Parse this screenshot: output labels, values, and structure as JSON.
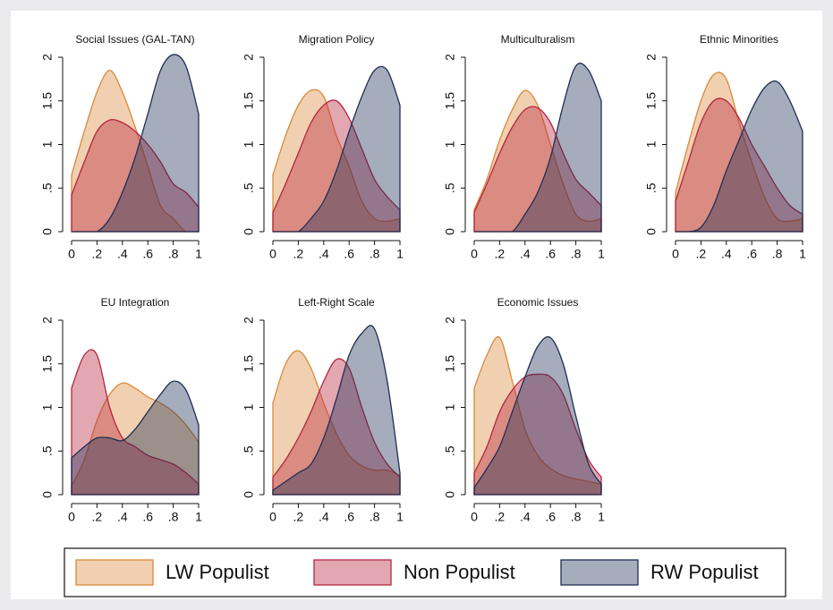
{
  "chart_data": [
    {
      "type": "area",
      "title": "Social Issues (GAL-TAN)",
      "x": [
        0,
        0.1,
        0.2,
        0.3,
        0.4,
        0.5,
        0.6,
        0.7,
        0.8,
        0.9,
        1
      ],
      "series": [
        {
          "values": [
            0.65,
            1.15,
            1.6,
            1.85,
            1.6,
            1.2,
            0.75,
            0.3,
            0.15,
            0,
            0
          ]
        },
        {
          "values": [
            0.42,
            0.8,
            1.15,
            1.28,
            1.25,
            1.15,
            1.0,
            0.8,
            0.55,
            0.45,
            0.28
          ]
        },
        {
          "values": [
            0,
            0,
            0,
            0.15,
            0.45,
            0.85,
            1.35,
            1.85,
            2.03,
            1.9,
            1.35
          ]
        }
      ],
      "xlim": [
        0,
        1
      ],
      "ylim": [
        0,
        2
      ]
    },
    {
      "type": "area",
      "title": "Migration Policy",
      "x": [
        0,
        0.1,
        0.2,
        0.3,
        0.4,
        0.5,
        0.6,
        0.7,
        0.8,
        0.9,
        1
      ],
      "series": [
        {
          "values": [
            0.65,
            1.1,
            1.45,
            1.62,
            1.55,
            1.1,
            0.75,
            0.35,
            0.15,
            0.12,
            0.15
          ]
        },
        {
          "values": [
            0.22,
            0.55,
            0.9,
            1.25,
            1.45,
            1.5,
            1.3,
            0.95,
            0.6,
            0.4,
            0.25
          ]
        },
        {
          "values": [
            0,
            0,
            0,
            0.15,
            0.35,
            0.7,
            1.15,
            1.55,
            1.85,
            1.85,
            1.45
          ]
        }
      ],
      "xlim": [
        0,
        1
      ],
      "ylim": [
        0,
        2
      ]
    },
    {
      "type": "area",
      "title": "Multiculturalism",
      "x": [
        0,
        0.1,
        0.2,
        0.3,
        0.4,
        0.5,
        0.6,
        0.7,
        0.8,
        0.9,
        1
      ],
      "series": [
        {
          "values": [
            0.25,
            0.6,
            1.05,
            1.4,
            1.62,
            1.45,
            1.0,
            0.55,
            0.2,
            0.12,
            0.15
          ]
        },
        {
          "values": [
            0.22,
            0.55,
            0.9,
            1.2,
            1.4,
            1.42,
            1.25,
            0.9,
            0.6,
            0.45,
            0.3
          ]
        },
        {
          "values": [
            0,
            0,
            0,
            0,
            0.2,
            0.45,
            0.85,
            1.45,
            1.9,
            1.85,
            1.5
          ]
        }
      ],
      "xlim": [
        0,
        1
      ],
      "ylim": [
        0,
        2
      ]
    },
    {
      "type": "area",
      "title": "Ethnic Minorities",
      "x": [
        0,
        0.1,
        0.2,
        0.3,
        0.4,
        0.5,
        0.6,
        0.7,
        0.8,
        0.9,
        1
      ],
      "series": [
        {
          "values": [
            0.45,
            1.0,
            1.5,
            1.8,
            1.75,
            1.25,
            0.8,
            0.4,
            0.15,
            0.12,
            0.15
          ]
        },
        {
          "values": [
            0.35,
            0.8,
            1.25,
            1.5,
            1.5,
            1.3,
            1.0,
            0.75,
            0.5,
            0.3,
            0.2
          ]
        },
        {
          "values": [
            0,
            0,
            0.05,
            0.3,
            0.7,
            1.05,
            1.4,
            1.65,
            1.72,
            1.5,
            1.15
          ]
        }
      ],
      "xlim": [
        0,
        1
      ],
      "ylim": [
        0,
        2
      ]
    },
    {
      "type": "area",
      "title": "EU Integration",
      "x": [
        0,
        0.1,
        0.2,
        0.3,
        0.4,
        0.5,
        0.6,
        0.7,
        0.8,
        0.9,
        1
      ],
      "series": [
        {
          "values": [
            0.1,
            0.4,
            0.85,
            1.15,
            1.28,
            1.22,
            1.12,
            1.05,
            0.95,
            0.8,
            0.6
          ]
        },
        {
          "values": [
            1.22,
            1.6,
            1.6,
            1.0,
            0.65,
            0.55,
            0.45,
            0.4,
            0.35,
            0.25,
            0.12
          ]
        },
        {
          "values": [
            0.42,
            0.55,
            0.65,
            0.65,
            0.62,
            0.75,
            0.95,
            1.15,
            1.3,
            1.2,
            0.8
          ]
        }
      ],
      "xlim": [
        0,
        1
      ],
      "ylim": [
        0,
        2
      ]
    },
    {
      "type": "area",
      "title": "Left-Right Scale",
      "x": [
        0,
        0.1,
        0.2,
        0.3,
        0.4,
        0.5,
        0.6,
        0.7,
        0.8,
        0.9,
        1
      ],
      "series": [
        {
          "values": [
            1.05,
            1.5,
            1.65,
            1.45,
            1.05,
            0.7,
            0.45,
            0.33,
            0.28,
            0.28,
            0.22
          ]
        },
        {
          "values": [
            0.2,
            0.4,
            0.65,
            0.95,
            1.3,
            1.55,
            1.45,
            1.0,
            0.6,
            0.35,
            0.2
          ]
        },
        {
          "values": [
            0.05,
            0.15,
            0.25,
            0.35,
            0.65,
            1.1,
            1.6,
            1.85,
            1.9,
            1.3,
            0.25
          ]
        }
      ],
      "xlim": [
        0,
        1
      ],
      "ylim": [
        0,
        2
      ]
    },
    {
      "type": "area",
      "title": "Economic Issues",
      "x": [
        0,
        0.1,
        0.2,
        0.3,
        0.4,
        0.5,
        0.6,
        0.7,
        0.8,
        0.9,
        1
      ],
      "series": [
        {
          "values": [
            1.22,
            1.6,
            1.8,
            1.3,
            0.75,
            0.45,
            0.3,
            0.22,
            0.18,
            0.15,
            0.12
          ]
        },
        {
          "values": [
            0.25,
            0.55,
            0.95,
            1.2,
            1.35,
            1.38,
            1.35,
            1.15,
            0.75,
            0.4,
            0.2
          ]
        },
        {
          "values": [
            0.08,
            0.3,
            0.55,
            0.95,
            1.35,
            1.7,
            1.8,
            1.5,
            0.9,
            0.35,
            0.12
          ]
        }
      ],
      "xlim": [
        0,
        1
      ],
      "ylim": [
        0,
        2
      ]
    }
  ],
  "xticks": [
    0,
    {
      "value": 0.2,
      "label": ".2"
    },
    {
      "value": 0.4,
      "label": ".4"
    },
    {
      "value": 0.6,
      "label": ".6"
    },
    {
      "value": 0.8,
      "label": ".8"
    },
    1
  ],
  "yticks": [
    0,
    {
      "value": 0.5,
      "label": ".5"
    },
    1,
    1.5,
    2
  ],
  "legend": {
    "position": "bottom",
    "entries": [
      {
        "name": "LW Populist",
        "color": "#d9893a"
      },
      {
        "name": "Non Populist",
        "color": "#b8243f"
      },
      {
        "name": "RW Populist",
        "color": "#1f2f55"
      }
    ]
  }
}
